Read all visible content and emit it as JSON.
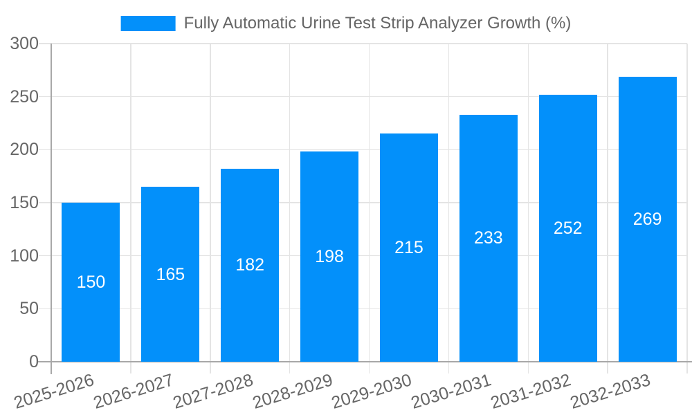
{
  "colors": {
    "bar": "#0390FA",
    "grid": "#E4E4E4",
    "axis_border": "#A8A8A8",
    "text": "#666666",
    "data_label": "#FFFFFF"
  },
  "chart_data": {
    "type": "bar",
    "title": "",
    "categories": [
      "2025-2026",
      "2026-2027",
      "2027-2028",
      "2028-2029",
      "2029-2030",
      "2030-2031",
      "2031-2032",
      "2032-2033"
    ],
    "series": [
      {
        "name": "Fully Automatic Urine Test Strip Analyzer Growth (%)",
        "values": [
          150,
          165,
          182,
          198,
          215,
          233,
          252,
          269
        ]
      }
    ],
    "xlabel": "",
    "ylabel": "",
    "ylim": [
      0,
      300
    ],
    "yticks": [
      0,
      50,
      100,
      150,
      200,
      250,
      300
    ],
    "grid": true,
    "legend_position": "top",
    "data_labels": "inside-center",
    "x_label_rotation_deg": -17
  }
}
